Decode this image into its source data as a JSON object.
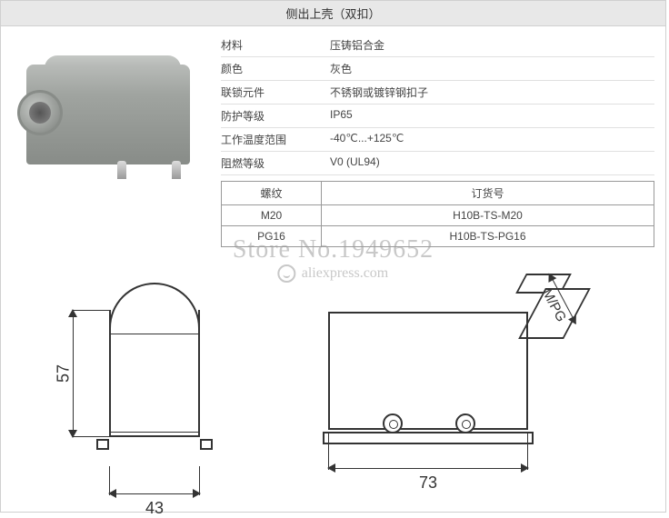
{
  "title": "侧出上壳（双扣）",
  "specs": [
    {
      "label": "材料",
      "value": "压铸铝合金"
    },
    {
      "label": "颜色",
      "value": "灰色"
    },
    {
      "label": "联锁元件",
      "value": "不锈钢或镀锌钢扣子"
    },
    {
      "label": "防护等级",
      "value": "IP65"
    },
    {
      "label": "工作温度范围",
      "value": "-40℃...+125℃"
    },
    {
      "label": "阻燃等级",
      "value": "V0 (UL94)"
    }
  ],
  "order_table": {
    "headers": {
      "thread": "螺纹",
      "order_no": "订货号"
    },
    "rows": [
      {
        "thread": "M20",
        "order_no": "H10B-TS-M20"
      },
      {
        "thread": "PG16",
        "order_no": "H10B-TS-PG16"
      }
    ]
  },
  "watermark": {
    "line1": "Store No.1949652",
    "line2": "aliexpress.com"
  },
  "drawing": {
    "front_view": {
      "height_dim": "57",
      "width_dim": "43"
    },
    "side_view": {
      "width_dim": "73",
      "thread_label": "M/PG"
    }
  },
  "colors": {
    "border": "#d0d0d0",
    "title_bg": "#e8e8e8",
    "line": "#333333",
    "text": "#444444",
    "watermark": "rgba(155,155,155,0.55)"
  }
}
